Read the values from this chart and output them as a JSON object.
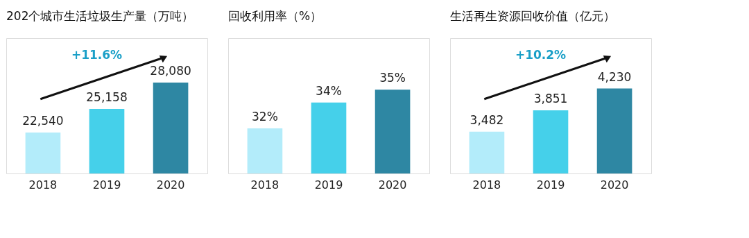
{
  "chart_data": [
    {
      "type": "bar",
      "title": "202个城市生活垃圾生产量（万吨）",
      "categories": [
        "2018",
        "2019",
        "2020"
      ],
      "values": [
        22540,
        25158,
        28080
      ],
      "colors": [
        "#b3ecfa",
        "#45d0ea",
        "#2e87a3"
      ],
      "value_labels": [
        "22,540",
        "25,158",
        "28,080"
      ],
      "ylim": [
        18000,
        33000
      ],
      "grid": false,
      "annotations": [
        "+11.6%"
      ]
    },
    {
      "type": "bar",
      "title": "回收利用率（%）",
      "categories": [
        "2018",
        "2019",
        "2020"
      ],
      "values": [
        32,
        34,
        35
      ],
      "colors": [
        "#b3ecfa",
        "#45d0ea",
        "#2e87a3"
      ],
      "value_labels": [
        "32%",
        "34%",
        "35%"
      ],
      "ylim": [
        28.5,
        39
      ],
      "grid": false
    },
    {
      "type": "bar",
      "title": "生活再生资源回收价值（亿元）",
      "categories": [
        "2018",
        "2019",
        "2020"
      ],
      "values": [
        3482,
        3851,
        4230
      ],
      "colors": [
        "#b3ecfa",
        "#45d0ea",
        "#2e87a3"
      ],
      "value_labels": [
        "3,482",
        "3,851",
        "4,230"
      ],
      "ylim": [
        2760,
        5100
      ],
      "grid": false,
      "annotations": [
        "+10.2%"
      ]
    }
  ]
}
